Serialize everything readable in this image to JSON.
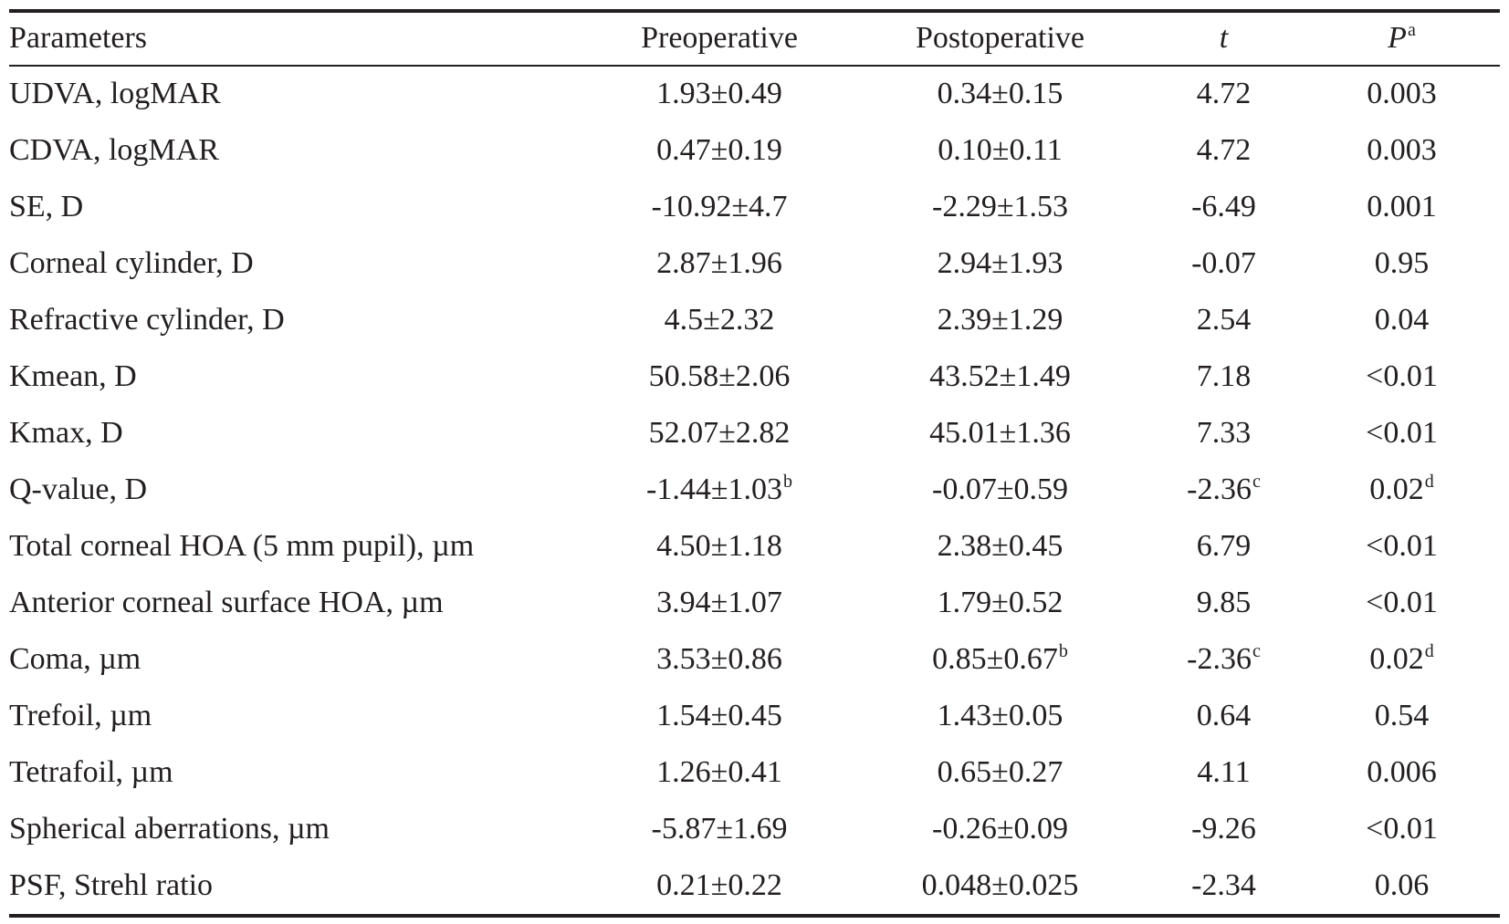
{
  "table": {
    "headers": {
      "parameters": "Parameters",
      "preoperative": "Preoperative",
      "postoperative": "Postoperative",
      "t": "t",
      "p": "P",
      "p_sup": "a"
    },
    "rows": [
      {
        "param": "UDVA, logMAR",
        "pre": "1.93±0.49",
        "pre_sup": "",
        "post": "0.34±0.15",
        "post_sup": "",
        "t": "4.72",
        "t_sup": "",
        "p": "0.003",
        "p_sup": ""
      },
      {
        "param": "CDVA, logMAR",
        "pre": "0.47±0.19",
        "pre_sup": "",
        "post": "0.10±0.11",
        "post_sup": "",
        "t": "4.72",
        "t_sup": "",
        "p": "0.003",
        "p_sup": ""
      },
      {
        "param": "SE, D",
        "pre": "-10.92±4.7",
        "pre_sup": "",
        "post": "-2.29±1.53",
        "post_sup": "",
        "t": "-6.49",
        "t_sup": "",
        "p": "0.001",
        "p_sup": ""
      },
      {
        "param": "Corneal cylinder, D",
        "pre": "2.87±1.96",
        "pre_sup": "",
        "post": "2.94±1.93",
        "post_sup": "",
        "t": "-0.07",
        "t_sup": "",
        "p": "0.95",
        "p_sup": ""
      },
      {
        "param": "Refractive cylinder, D",
        "pre": "4.5±2.32",
        "pre_sup": "",
        "post": "2.39±1.29",
        "post_sup": "",
        "t": "2.54",
        "t_sup": "",
        "p": "0.04",
        "p_sup": ""
      },
      {
        "param": "Kmean, D",
        "pre": "50.58±2.06",
        "pre_sup": "",
        "post": "43.52±1.49",
        "post_sup": "",
        "t": "7.18",
        "t_sup": "",
        "p": "<0.01",
        "p_sup": ""
      },
      {
        "param": "Kmax, D",
        "pre": "52.07±2.82",
        "pre_sup": "",
        "post": "45.01±1.36",
        "post_sup": "",
        "t": "7.33",
        "t_sup": "",
        "p": "<0.01",
        "p_sup": ""
      },
      {
        "param": "Q-value, D",
        "pre": "-1.44±1.03",
        "pre_sup": "b",
        "post": "-0.07±0.59",
        "post_sup": "",
        "t": "-2.36",
        "t_sup": "c",
        "p": "0.02",
        "p_sup": "d"
      },
      {
        "param": "Total corneal HOA (5 mm pupil), µm",
        "pre": "4.50±1.18",
        "pre_sup": "",
        "post": "2.38±0.45",
        "post_sup": "",
        "t": "6.79",
        "t_sup": "",
        "p": "<0.01",
        "p_sup": ""
      },
      {
        "param": "Anterior corneal surface HOA, µm",
        "pre": "3.94±1.07",
        "pre_sup": "",
        "post": "1.79±0.52",
        "post_sup": "",
        "t": "9.85",
        "t_sup": "",
        "p": "<0.01",
        "p_sup": ""
      },
      {
        "param": "Coma, µm",
        "pre": "3.53±0.86",
        "pre_sup": "",
        "post": "0.85±0.67",
        "post_sup": "b",
        "t": "-2.36",
        "t_sup": "c",
        "p": "0.02",
        "p_sup": "d"
      },
      {
        "param": "Trefoil, µm",
        "pre": "1.54±0.45",
        "pre_sup": "",
        "post": "1.43±0.05",
        "post_sup": "",
        "t": "0.64",
        "t_sup": "",
        "p": "0.54",
        "p_sup": ""
      },
      {
        "param": "Tetrafoil, µm",
        "pre": "1.26±0.41",
        "pre_sup": "",
        "post": "0.65±0.27",
        "post_sup": "",
        "t": "4.11",
        "t_sup": "",
        "p": "0.006",
        "p_sup": ""
      },
      {
        "param": "Spherical aberrations, µm",
        "pre": "-5.87±1.69",
        "pre_sup": "",
        "post": "-0.26±0.09",
        "post_sup": "",
        "t": "-9.26",
        "t_sup": "",
        "p": "<0.01",
        "p_sup": ""
      },
      {
        "param": "PSF, Strehl ratio",
        "pre": "0.21±0.22",
        "pre_sup": "",
        "post": "0.048±0.025",
        "post_sup": "",
        "t": "-2.34",
        "t_sup": "",
        "p": "0.06",
        "p_sup": ""
      }
    ]
  }
}
